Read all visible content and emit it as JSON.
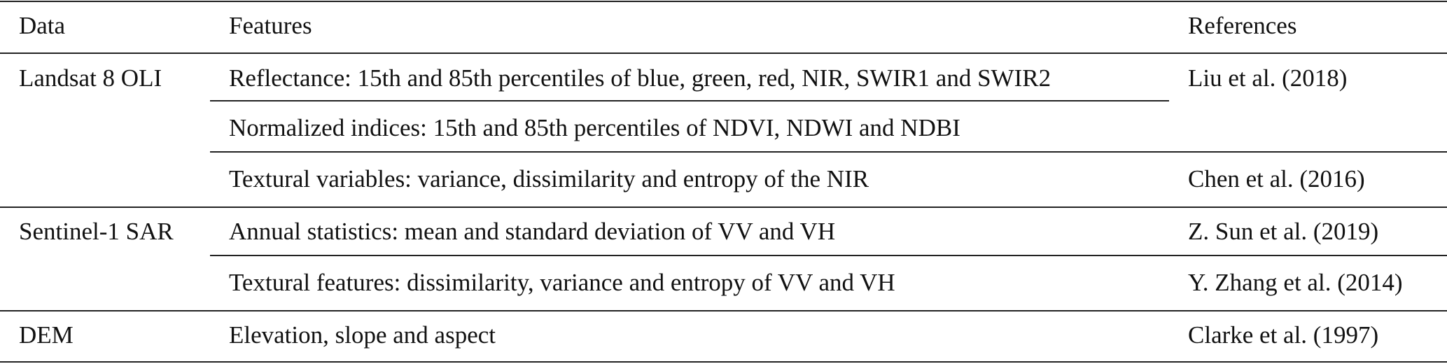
{
  "table": {
    "headers": [
      "Data",
      "Features",
      "References"
    ],
    "rows": [
      {
        "data": "Landsat 8 OLI",
        "feature": "Reflectance: 15th and 85th percentiles of blue, green, red, NIR, SWIR1 and SWIR2",
        "reference": "Liu et al. (2018)"
      },
      {
        "data": "",
        "feature": "Normalized indices: 15th and 85th percentiles of NDVI, NDWI and NDBI",
        "reference": ""
      },
      {
        "data": "",
        "feature": "Textural variables: variance, dissimilarity and entropy of the NIR",
        "reference": "Chen et al. (2016)"
      },
      {
        "data": "Sentinel-1 SAR",
        "feature": "Annual statistics: mean and standard deviation of VV and VH",
        "reference": "Z. Sun et al. (2019)"
      },
      {
        "data": "",
        "feature": "Textural features: dissimilarity, variance and entropy of VV and VH",
        "reference": "Y. Zhang et al. (2014)"
      },
      {
        "data": "DEM",
        "feature": "Elevation, slope and aspect",
        "reference": "Clarke et al. (1997)"
      }
    ]
  }
}
